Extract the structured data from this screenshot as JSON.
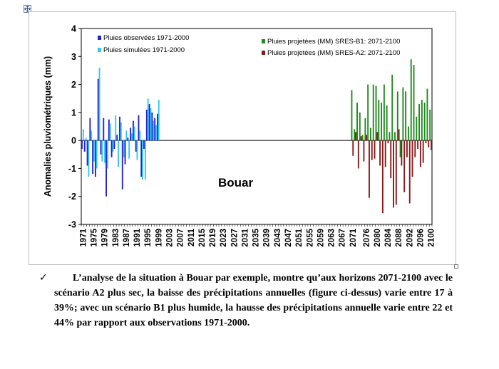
{
  "chart_data": {
    "type": "bar",
    "ylabel": "Anomalies pluviométriques (mm)",
    "xlabel": "",
    "ylim": [
      -3,
      4
    ],
    "yticks": [
      4,
      3,
      2,
      1,
      0,
      -1,
      -2,
      -3
    ],
    "xticks": [
      "1971",
      "1975",
      "1979",
      "1983",
      "1987",
      "1991",
      "1995",
      "1999",
      "2003",
      "2007",
      "2011",
      "2015",
      "2019",
      "2023",
      "2027",
      "2031",
      "2035",
      "2039",
      "2043",
      "2047",
      "2051",
      "2055",
      "2059",
      "2063",
      "2067",
      "2071",
      "2076",
      "2080",
      "2084",
      "2088",
      "2092",
      "2096",
      "2100"
    ],
    "x_start": 1971,
    "x_end": 2100,
    "annotation": "Bouar",
    "legend": [
      {
        "name": "Pluies observées 1971-2000",
        "color": "#2323d8"
      },
      {
        "name": "Pluies simulées 1971-2000",
        "color": "#33c8f0"
      },
      {
        "name": "Pluies projetées (MM) SRES-B1: 2071-2100",
        "color": "#1f8a1f"
      },
      {
        "name": "Pluies projetées (MM) SRES-A2: 2071-2100",
        "color": "#8b1a1a"
      }
    ],
    "series": [
      {
        "name": "Pluies observées 1971-2000",
        "color": "#2323d8",
        "years": [
          1971,
          1972,
          1973,
          1974,
          1975,
          1976,
          1977,
          1978,
          1979,
          1980,
          1981,
          1982,
          1983,
          1984,
          1985,
          1986,
          1987,
          1988,
          1989,
          1990,
          1991,
          1992,
          1993,
          1994,
          1995,
          1996,
          1997,
          1998,
          1999,
          2000
        ],
        "values": [
          -0.3,
          -0.4,
          -0.9,
          0.8,
          -1.2,
          -1.3,
          2.2,
          -0.5,
          0.8,
          -2.0,
          0.75,
          -0.6,
          -0.3,
          0.2,
          0.85,
          -1.75,
          -0.85,
          0.1,
          0.45,
          0.7,
          -0.4,
          0.9,
          -1.3,
          -0.3,
          1.1,
          1.3,
          1.0,
          0.8,
          0.95,
          0.0
        ]
      },
      {
        "name": "Pluies simulées 1971-2000",
        "color": "#33c8f0",
        "years": [
          1971,
          1972,
          1973,
          1974,
          1975,
          1976,
          1977,
          1978,
          1979,
          1980,
          1981,
          1982,
          1983,
          1984,
          1985,
          1986,
          1987,
          1988,
          1989,
          1990,
          1991,
          1992,
          1993,
          1994,
          1995,
          1996,
          1997,
          1998,
          1999,
          2000
        ],
        "values": [
          0.4,
          0.1,
          -1.3,
          0.35,
          -0.75,
          -1.0,
          2.6,
          -0.75,
          -0.8,
          -1.0,
          0.6,
          -0.4,
          0.9,
          -0.95,
          0.65,
          -0.6,
          0.35,
          -0.65,
          0.25,
          0.5,
          -0.7,
          0.35,
          -1.4,
          -1.4,
          1.5,
          1.15,
          0.7,
          0.55,
          1.45,
          0.0
        ]
      },
      {
        "name": "Pluies projetées (MM) SRES-B1: 2071-2100",
        "color": "#1f8a1f",
        "years": [
          2071,
          2072,
          2073,
          2074,
          2075,
          2076,
          2077,
          2078,
          2079,
          2080,
          2081,
          2082,
          2083,
          2084,
          2085,
          2086,
          2087,
          2088,
          2089,
          2090,
          2091,
          2092,
          2093,
          2094,
          2095,
          2096,
          2097,
          2098,
          2099,
          2100
        ],
        "values": [
          1.8,
          0.4,
          1.35,
          1.0,
          0.2,
          0.8,
          2.0,
          0.45,
          2.0,
          1.95,
          1.45,
          1.35,
          2.0,
          1.25,
          0.3,
          2.35,
          0.3,
          1.75,
          -0.6,
          1.9,
          1.75,
          0.5,
          2.9,
          2.7,
          0.85,
          1.3,
          1.45,
          1.35,
          1.85,
          1.1
        ]
      },
      {
        "name": "Pluies projetées (MM) SRES-A2: 2071-2100",
        "color": "#8b1a1a",
        "years": [
          2071,
          2072,
          2073,
          2074,
          2075,
          2076,
          2077,
          2078,
          2079,
          2080,
          2081,
          2082,
          2083,
          2084,
          2085,
          2086,
          2087,
          2088,
          2089,
          2090,
          2091,
          2092,
          2093,
          2094,
          2095,
          2096,
          2097,
          2098,
          2099,
          2100
        ],
        "values": [
          -0.55,
          0.3,
          -1.0,
          0.15,
          -0.75,
          0.2,
          -2.05,
          -0.7,
          -0.65,
          0.3,
          -0.9,
          -2.6,
          -0.95,
          -0.1,
          -1.35,
          -2.4,
          -2.3,
          0.4,
          -0.9,
          -1.85,
          -0.6,
          -2.25,
          -1.3,
          -0.6,
          -0.3,
          -0.95,
          -0.8,
          -0.1,
          -0.25,
          -0.35
        ]
      }
    ]
  },
  "caption": {
    "bullet": "✓",
    "text": "L’analyse de la situation à Bouar  par exemple, montre qu’aux horizons 2071-2100 avec le scénario A2 plus sec, la baisse des précipitations annuelles (figure ci-dessus) varie entre 17 à 39%; avec un scénario B1 plus humide, la hausse des précipitations annuelle varie entre 22 et 44% par rapport aux observations 1971-2000."
  }
}
